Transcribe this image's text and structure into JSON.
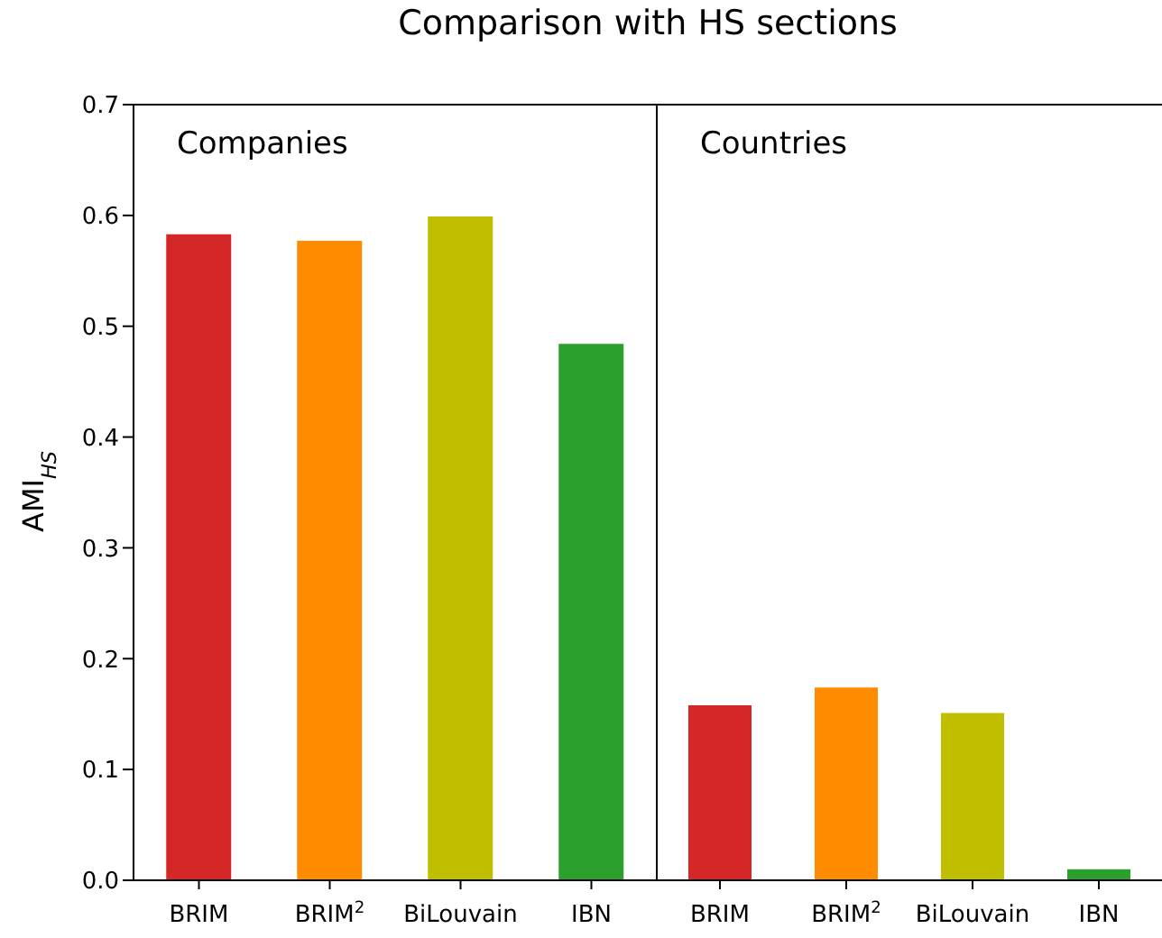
{
  "chart_data": [
    {
      "type": "bar",
      "title": "Comparison with HS sections",
      "ylabel": "AMI$_{HS}$",
      "categories": [
        "BRIM",
        "BRIM$^{2}$",
        "BiLouvain",
        "IBN"
      ],
      "values": [
        0.583,
        0.577,
        0.599,
        0.484
      ],
      "colors": [
        "#d62728",
        "#ff8c00",
        "#bfbf00",
        "#2ca02c"
      ],
      "ylim": [
        0,
        0.7
      ],
      "yticks": [
        {
          "value": 0,
          "label": "0.0"
        },
        0.1,
        0.2,
        0.3,
        0.4,
        0.5,
        0.6,
        0.7
      ],
      "annotations": [
        "Companies"
      ],
      "grid": false,
      "legend": false
    },
    {
      "type": "bar",
      "categories": [
        "BRIM",
        "BRIM$^{2}$",
        "BiLouvain",
        "IBN"
      ],
      "values": [
        0.158,
        0.174,
        0.151,
        0.01
      ],
      "colors": [
        "#d62728",
        "#ff8c00",
        "#bfbf00",
        "#2ca02c"
      ],
      "ylim": [
        0,
        0.7
      ],
      "tick_labels": "x",
      "annotations": [
        "Countries"
      ],
      "grid": false,
      "legend": false
    }
  ]
}
